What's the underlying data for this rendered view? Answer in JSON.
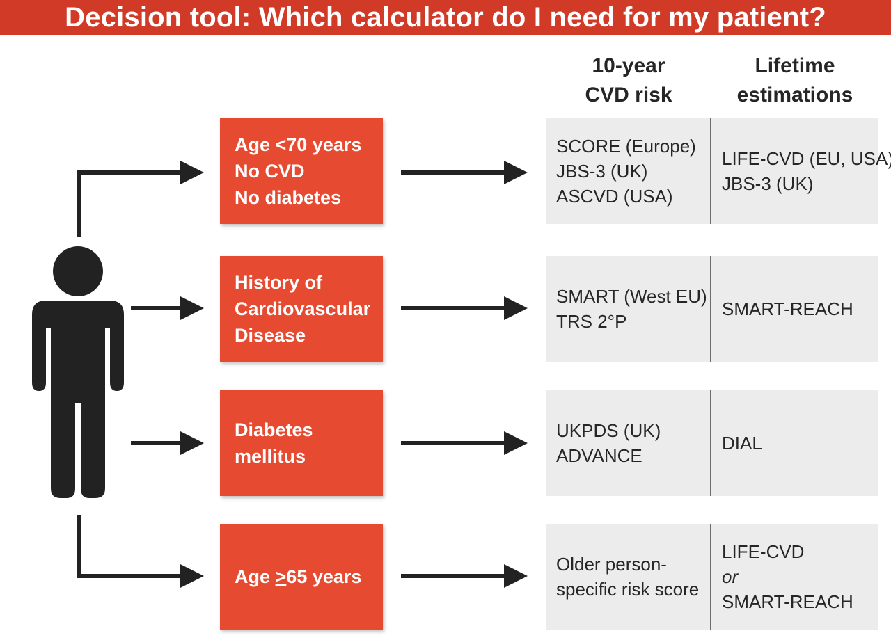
{
  "title": "Decision tool: Which calculator do I need for my patient?",
  "columns": {
    "ten_year": [
      "10-year",
      "CVD risk"
    ],
    "lifetime": [
      "Lifetime",
      "estimations"
    ]
  },
  "rows": [
    {
      "condition": [
        "Age <70 years",
        "No CVD",
        "No diabetes"
      ],
      "ten_year": [
        "SCORE (Europe)",
        "JBS-3 (UK)",
        "ASCVD (USA)"
      ],
      "lifetime": [
        "LIFE-CVD (EU, USA)",
        "JBS-3 (UK)"
      ]
    },
    {
      "condition": [
        "History of",
        "Cardiovascular",
        "Disease"
      ],
      "ten_year": [
        "SMART (West EU)",
        "TRS 2°P"
      ],
      "lifetime": [
        "SMART-REACH"
      ]
    },
    {
      "condition": [
        "Diabetes",
        "mellitus"
      ],
      "ten_year": [
        "UKPDS (UK)",
        "ADVANCE"
      ],
      "lifetime": [
        "DIAL"
      ]
    },
    {
      "condition_prefix": "Age ",
      "condition_symbol": ">",
      "condition_suffix": "65 years",
      "ten_year": [
        "Older person-",
        "specific risk score"
      ],
      "lifetime": [
        "LIFE-CVD",
        "or",
        "SMART-REACH"
      ]
    }
  ],
  "icons": {
    "patient": "person-silhouette-icon"
  },
  "colors": {
    "title_bar": "#d03a26",
    "condition_box": "#e64a31",
    "result_box": "#ececec",
    "ink": "#222222"
  }
}
